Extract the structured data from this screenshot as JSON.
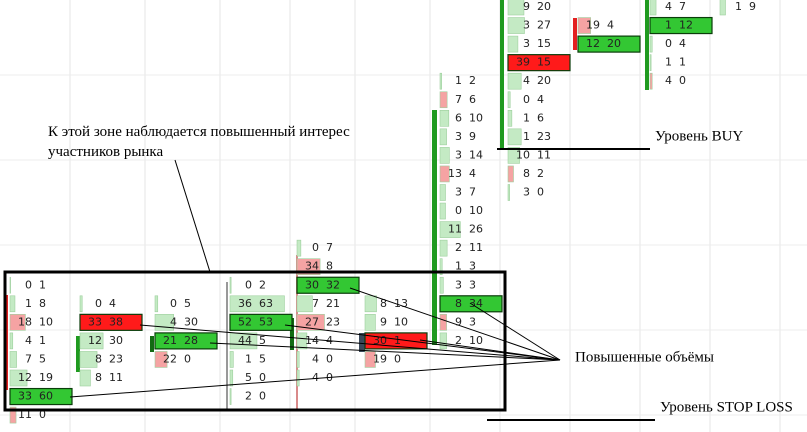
{
  "chart_data": {
    "type": "footprint",
    "annotation": "К этой зоне наблюдается повышенный интерес участников рынка",
    "label_volumes": "Повышенные объёмы",
    "label_buy": "Уровень BUY",
    "label_stop": "Уровень STOP LOSS",
    "cell_color": "#c4eac4",
    "columns": [
      {
        "cells": [
          {
            "bid": 0,
            "ask": 1
          },
          {
            "bid": 1,
            "ask": 8
          },
          {
            "bid": 18,
            "ask": 10,
            "color": "#f5a3a3"
          },
          {
            "bid": 4,
            "ask": 1
          },
          {
            "bid": 7,
            "ask": 5
          },
          {
            "bid": 12,
            "ask": 19
          },
          {
            "bid": 33,
            "ask": 60,
            "color": "#33c733"
          },
          {
            "bid": 11,
            "ask": 0,
            "color": "#f5a3a3"
          }
        ]
      },
      {
        "cells": [
          {
            "bid": 0,
            "ask": 4
          },
          {
            "bid": 33,
            "ask": 38,
            "color": "#ff1a1a"
          },
          {
            "bid": 12,
            "ask": 30
          },
          {
            "bid": 8,
            "ask": 23
          },
          {
            "bid": 8,
            "ask": 11
          }
        ]
      },
      {
        "cells": [
          {
            "bid": 0,
            "ask": 5
          },
          {
            "bid": 4,
            "ask": 30
          },
          {
            "bid": 21,
            "ask": 28,
            "color": "#33c733"
          },
          {
            "bid": 22,
            "ask": 0,
            "color": "#f5a3a3"
          }
        ]
      },
      {
        "cells": [
          {
            "bid": 0,
            "ask": 2
          },
          {
            "bid": 36,
            "ask": 63
          },
          {
            "bid": 52,
            "ask": 53,
            "color": "#33c733"
          },
          {
            "bid": 44,
            "ask": 5
          },
          {
            "bid": 1,
            "ask": 5
          },
          {
            "bid": 5,
            "ask": 0
          },
          {
            "bid": 2,
            "ask": 0
          }
        ]
      },
      {
        "cells": [
          {
            "bid": 0,
            "ask": 7
          },
          {
            "bid": 34,
            "ask": 8,
            "color": "#f5a3a3"
          },
          {
            "bid": 30,
            "ask": 32,
            "color": "#33c733"
          },
          {
            "bid": 7,
            "ask": 21
          },
          {
            "bid": 27,
            "ask": 23,
            "color": "#f5a3a3"
          },
          {
            "bid": 14,
            "ask": 4
          },
          {
            "bid": 4,
            "ask": 0
          },
          {
            "bid": 4,
            "ask": 0
          }
        ]
      },
      {
        "cells": [
          {
            "bid": 8,
            "ask": 13
          },
          {
            "bid": 9,
            "ask": 10
          },
          {
            "bid": 30,
            "ask": 1,
            "color": "#ff1a1a"
          },
          {
            "bid": 19,
            "ask": 0,
            "color": "#f5a3a3"
          }
        ]
      },
      {
        "cells": [
          {
            "bid": 1,
            "ask": 2
          },
          {
            "bid": 7,
            "ask": 6,
            "color": "#f5a3a3"
          },
          {
            "bid": 6,
            "ask": 10
          },
          {
            "bid": 3,
            "ask": 9
          },
          {
            "bid": 3,
            "ask": 14
          },
          {
            "bid": 13,
            "ask": 4,
            "color": "#f5a3a3"
          },
          {
            "bid": 3,
            "ask": 7
          },
          {
            "bid": 0,
            "ask": 10
          },
          {
            "bid": 11,
            "ask": 26
          },
          {
            "bid": 2,
            "ask": 11
          },
          {
            "bid": 1,
            "ask": 3
          },
          {
            "bid": 3,
            "ask": 3
          },
          {
            "bid": 8,
            "ask": 34,
            "color": "#33c733"
          },
          {
            "bid": 9,
            "ask": 3,
            "color": "#f5a3a3"
          },
          {
            "bid": 2,
            "ask": 10
          }
        ]
      },
      {
        "cells": [
          {
            "bid": 9,
            "ask": 20
          },
          {
            "bid": 3,
            "ask": 27
          },
          {
            "bid": 3,
            "ask": 15
          },
          {
            "bid": 39,
            "ask": 15,
            "color": "#ff1a1a"
          },
          {
            "bid": 4,
            "ask": 20
          },
          {
            "bid": 0,
            "ask": 4
          },
          {
            "bid": 1,
            "ask": 6
          },
          {
            "bid": 1,
            "ask": 23
          },
          {
            "bid": 10,
            "ask": 11
          },
          {
            "bid": 8,
            "ask": 2,
            "color": "#f5a3a3"
          },
          {
            "bid": 3,
            "ask": 0
          }
        ]
      },
      {
        "cells": [
          {
            "bid": 19,
            "ask": 4,
            "color": "#f5a3a3"
          },
          {
            "bid": 12,
            "ask": 20,
            "color": "#33c733"
          }
        ]
      },
      {
        "cells": [
          {
            "bid": 4,
            "ask": 7
          },
          {
            "bid": 1,
            "ask": 12,
            "color": "#33c733"
          },
          {
            "bid": 0,
            "ask": 4
          },
          {
            "bid": 1,
            "ask": 1
          },
          {
            "bid": 4,
            "ask": 0,
            "color": "#f5a3a3"
          }
        ]
      },
      {
        "cells": [
          {
            "bid": 1,
            "ask": 9
          }
        ]
      }
    ]
  }
}
